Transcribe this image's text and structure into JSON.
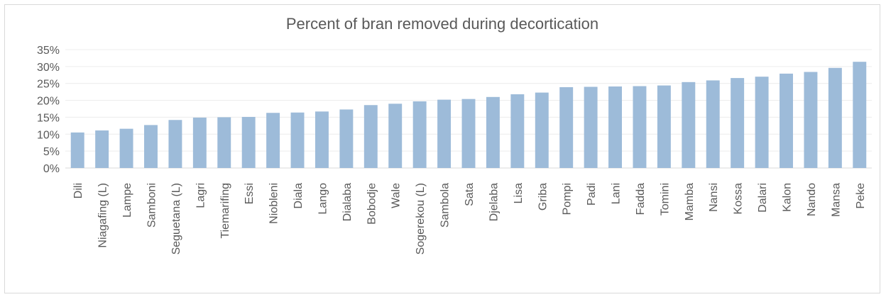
{
  "chart_data": {
    "type": "bar",
    "title": "Percent of bran removed during decortication",
    "xlabel": "",
    "ylabel": "",
    "ylim": [
      0,
      0.35
    ],
    "yticks": [
      "0%",
      "5%",
      "10%",
      "15%",
      "20%",
      "25%",
      "30%",
      "35%"
    ],
    "grid": true,
    "bar_color": "#9dbbd9",
    "categories": [
      "Dili",
      "Niagafing (L)",
      "Lampe",
      "Samboni",
      "Seguetana (L)",
      "Lagri",
      "Tiemarifing",
      "Essi",
      "Niobleni",
      "Diala",
      "Lango",
      "Dialaba",
      "Bobodje",
      "Wale",
      "Sogerekou (L)",
      "Sambola",
      "Sata",
      "Djelaba",
      "Lisa",
      "Griba",
      "Pompi",
      "Padi",
      "Lani",
      "Fadda",
      "Tomini",
      "Mamba",
      "Nansi",
      "Kossa",
      "Dalari",
      "Kalon",
      "Nando",
      "Mansa",
      "Peke"
    ],
    "values": [
      0.105,
      0.111,
      0.116,
      0.127,
      0.142,
      0.149,
      0.15,
      0.151,
      0.163,
      0.164,
      0.167,
      0.173,
      0.186,
      0.19,
      0.197,
      0.202,
      0.204,
      0.21,
      0.218,
      0.223,
      0.239,
      0.24,
      0.241,
      0.242,
      0.244,
      0.254,
      0.259,
      0.266,
      0.27,
      0.279,
      0.284,
      0.296,
      0.314
    ]
  }
}
